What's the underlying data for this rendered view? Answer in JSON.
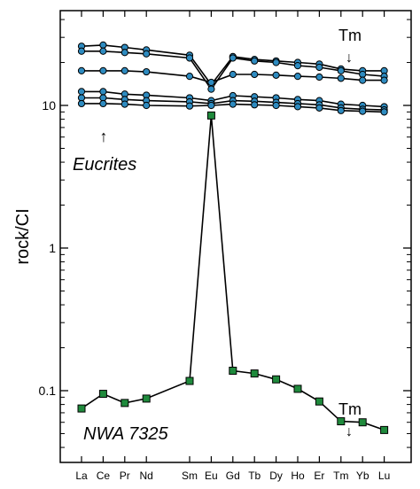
{
  "chart_data": {
    "type": "line",
    "title": "",
    "xlabel": "",
    "ylabel": "rock/CI",
    "scale": "log",
    "ylim": [
      0.038,
      40
    ],
    "yticks": [
      {
        "value": 0.1,
        "label": "0.1"
      },
      {
        "value": 1,
        "label": "1"
      },
      {
        "value": 10,
        "label": "10"
      }
    ],
    "categories": [
      "La",
      "Ce",
      "Pr",
      "Nd",
      "Sm",
      "Eu",
      "Gd",
      "Tb",
      "Dy",
      "Ho",
      "Er",
      "Tm",
      "Yb",
      "Lu"
    ],
    "x": [
      57,
      58,
      59,
      60,
      62,
      63,
      64,
      65,
      66,
      67,
      68,
      69,
      70,
      71
    ],
    "series": [
      {
        "group": "eucrite",
        "color": "#2e8bc0",
        "values": [
          26,
          26.5,
          25.5,
          24.5,
          22.5,
          14,
          22,
          21,
          20.5,
          20,
          19.5,
          18,
          17.5,
          17.5
        ]
      },
      {
        "group": "eucrite",
        "color": "#2e8bc0",
        "values": [
          24,
          24,
          23.5,
          23,
          21.5,
          13,
          21.5,
          20.5,
          20,
          19,
          18.5,
          17.5,
          16.5,
          16
        ]
      },
      {
        "group": "eucrite",
        "color": "#2e8bc0",
        "values": [
          17.5,
          17.5,
          17.5,
          17.2,
          16,
          14.5,
          16.5,
          16.5,
          16.3,
          16,
          15.8,
          15.5,
          15,
          15
        ]
      },
      {
        "group": "eucrite",
        "color": "#2e8bc0",
        "values": [
          12.5,
          12.5,
          12,
          11.8,
          11.3,
          10.8,
          11.7,
          11.5,
          11.3,
          11,
          10.8,
          10.2,
          10,
          9.8
        ]
      },
      {
        "group": "eucrite",
        "color": "#2e8bc0",
        "values": [
          11.3,
          11.3,
          11,
          10.8,
          10.6,
          10.3,
          10.8,
          10.7,
          10.5,
          10.3,
          10.1,
          9.6,
          9.4,
          9.3
        ]
      },
      {
        "group": "eucrite",
        "color": "#2e8bc0",
        "values": [
          10.3,
          10.3,
          10.2,
          10,
          9.9,
          10,
          10.2,
          10.1,
          10,
          9.8,
          9.6,
          9.2,
          9.1,
          9
        ]
      },
      {
        "group": "nwa",
        "color": "#1f8a3c",
        "values": [
          0.075,
          0.095,
          0.082,
          0.088,
          0.117,
          8.5,
          0.138,
          0.132,
          0.12,
          0.103,
          0.084,
          0.061,
          0.06,
          0.053
        ]
      }
    ],
    "annotations": [
      {
        "id": "tm_upper",
        "text": "Tm"
      },
      {
        "id": "tm_lower",
        "text": "Tm"
      },
      {
        "id": "eucrites",
        "text": "Eucrites"
      },
      {
        "id": "nwa",
        "text": "NWA 7325"
      }
    ],
    "arrow_glyphs": {
      "down": "↓",
      "up": "↑"
    }
  }
}
